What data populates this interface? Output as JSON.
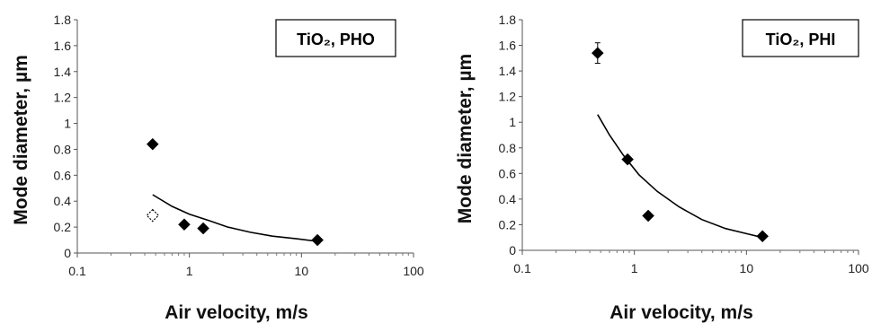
{
  "chart_data": [
    {
      "type": "scatter",
      "label": "TiO₂, PHO",
      "xlabel": "Air velocity, m/s",
      "ylabel": "Mode diameter, µm",
      "x_scale": "log",
      "xlim": [
        0.1,
        100
      ],
      "ylim": [
        0,
        1.8
      ],
      "x_ticks": [
        "0.1",
        "1",
        "10",
        "100"
      ],
      "y_ticks": [
        "0",
        "0.2",
        "0.4",
        "0.6",
        "0.8",
        "1",
        "1.2",
        "1.4",
        "1.6",
        "1.8"
      ],
      "grid": false,
      "series": [
        {
          "marker": "filled-diamond",
          "points": [
            {
              "x": 0.47,
              "y": 0.84
            },
            {
              "x": 0.9,
              "y": 0.22
            },
            {
              "x": 1.33,
              "y": 0.19
            },
            {
              "x": 13.9,
              "y": 0.1
            }
          ]
        },
        {
          "marker": "open-dashed-diamond",
          "points": [
            {
              "x": 0.47,
              "y": 0.29
            }
          ]
        }
      ],
      "fit_curve": [
        {
          "x": 0.47,
          "y": 0.45
        },
        {
          "x": 0.7,
          "y": 0.36
        },
        {
          "x": 1.0,
          "y": 0.3
        },
        {
          "x": 1.5,
          "y": 0.25
        },
        {
          "x": 2.2,
          "y": 0.2
        },
        {
          "x": 3.5,
          "y": 0.16
        },
        {
          "x": 5.5,
          "y": 0.13
        },
        {
          "x": 9.0,
          "y": 0.11
        },
        {
          "x": 13.9,
          "y": 0.09
        }
      ]
    },
    {
      "type": "scatter",
      "label": "TiO₂, PHI",
      "xlabel": "Air velocity, m/s",
      "ylabel": "Mode diameter, µm",
      "x_scale": "log",
      "xlim": [
        0.1,
        100
      ],
      "ylim": [
        0,
        1.8
      ],
      "x_ticks": [
        "0.1",
        "1",
        "10",
        "100"
      ],
      "y_ticks": [
        "0",
        "0.2",
        "0.4",
        "0.6",
        "0.8",
        "1",
        "1.2",
        "1.4",
        "1.6",
        "1.8"
      ],
      "grid": false,
      "series": [
        {
          "marker": "filled-diamond",
          "points": [
            {
              "x": 0.47,
              "y": 1.54,
              "err": 0.08
            },
            {
              "x": 0.87,
              "y": 0.71
            },
            {
              "x": 1.33,
              "y": 0.27
            },
            {
              "x": 13.9,
              "y": 0.11
            }
          ]
        }
      ],
      "fit_curve": [
        {
          "x": 0.47,
          "y": 1.06
        },
        {
          "x": 0.6,
          "y": 0.9
        },
        {
          "x": 0.8,
          "y": 0.74
        },
        {
          "x": 1.1,
          "y": 0.59
        },
        {
          "x": 1.6,
          "y": 0.46
        },
        {
          "x": 2.5,
          "y": 0.34
        },
        {
          "x": 4.0,
          "y": 0.24
        },
        {
          "x": 6.5,
          "y": 0.17
        },
        {
          "x": 10.0,
          "y": 0.13
        },
        {
          "x": 13.9,
          "y": 0.1
        }
      ]
    }
  ]
}
